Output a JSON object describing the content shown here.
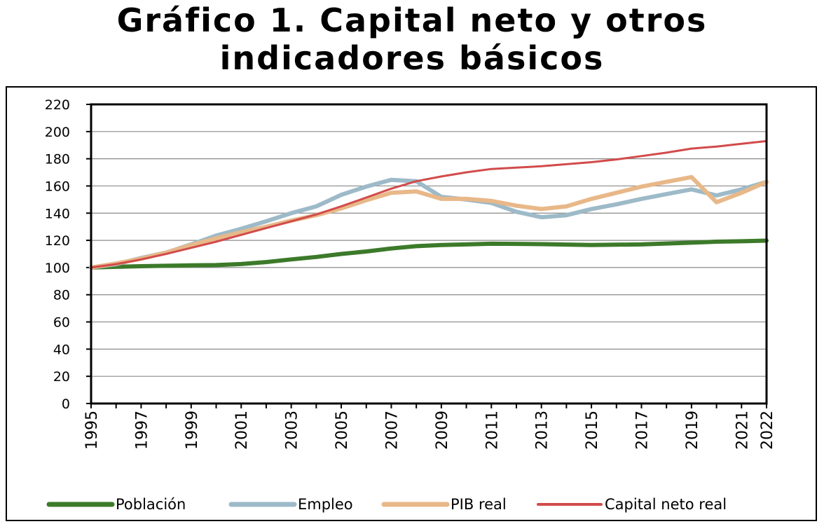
{
  "chart_data": {
    "type": "line",
    "title": "Gráfico 1. Capital neto y otros indicadores básicos",
    "xlabel": "",
    "ylabel": "",
    "ylim": [
      0,
      220
    ],
    "yticks": [
      "0",
      "20",
      "40",
      "60",
      "80",
      "100",
      "120",
      "140",
      "160",
      "180",
      "200",
      "220"
    ],
    "x": [
      1995,
      1996,
      1997,
      1998,
      1999,
      2000,
      2001,
      2002,
      2003,
      2004,
      2005,
      2006,
      2007,
      2008,
      2009,
      2010,
      2011,
      2012,
      2013,
      2014,
      2015,
      2016,
      2017,
      2018,
      2019,
      2020,
      2021,
      2022
    ],
    "xtick_labels": [
      "1995",
      "1997",
      "1999",
      "2001",
      "2003",
      "2005",
      "2007",
      "2009",
      "2011",
      "2013",
      "2015",
      "2017",
      "2019",
      "2021",
      "2022"
    ],
    "grid": true,
    "legend_position": "bottom",
    "series": [
      {
        "name": "Población",
        "color": "#3c7a2a",
        "values": [
          100,
          100.5,
          101,
          101.3,
          101.6,
          101.8,
          102.6,
          104,
          106,
          107.8,
          110,
          111.8,
          114,
          115.7,
          116.6,
          117,
          117.5,
          117.4,
          117.2,
          116.9,
          116.6,
          116.8,
          117,
          117.7,
          118.3,
          119,
          119.3,
          119.8
        ]
      },
      {
        "name": "Empleo",
        "color": "#9dbac8",
        "values": [
          100,
          102.5,
          107,
          111,
          117,
          123.5,
          128.5,
          134,
          140,
          145,
          153.5,
          159.5,
          164.5,
          163.5,
          152,
          150,
          147.5,
          141,
          137,
          138.5,
          143,
          146.5,
          150.5,
          154,
          157.5,
          153,
          157.5,
          163
        ]
      },
      {
        "name": "PIB real",
        "color": "#e8b889",
        "values": [
          100,
          103,
          106.5,
          111,
          116.5,
          121.5,
          126,
          130,
          134.5,
          138.5,
          143.5,
          149.5,
          155,
          156,
          150.5,
          150.5,
          149,
          145.5,
          143,
          145,
          150.5,
          155,
          159.5,
          163,
          166.5,
          148,
          155,
          163
        ]
      },
      {
        "name": "Capital neto real",
        "color": "#d24b4b",
        "values": [
          100,
          102.5,
          106,
          110,
          114.5,
          119,
          124,
          129,
          134,
          139,
          145,
          151.5,
          158,
          163.5,
          167,
          170,
          172.5,
          173.5,
          174.5,
          176,
          177.5,
          179.5,
          182,
          184.5,
          187.5,
          189,
          191,
          193
        ]
      }
    ]
  }
}
